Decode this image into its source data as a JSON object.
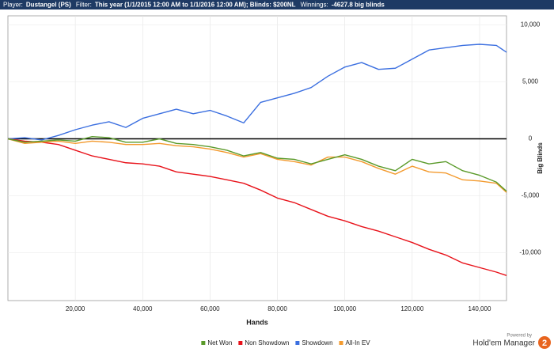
{
  "header": [
    {
      "label": "Player:",
      "value": "Dustangel (PS)"
    },
    {
      "label": "Filter:",
      "value": "This year (1/1/2015 12:00 AM to 1/1/2016 12:00 AM); Blinds: $200NL"
    },
    {
      "label": "Winnings:",
      "value": "-4627.8 big blinds"
    }
  ],
  "logo": {
    "caption": "Powered by",
    "name": "Hold'em Manager",
    "badge": "2"
  },
  "chart_data": {
    "type": "line",
    "x_label": "Hands",
    "y_label": "Big Blinds",
    "x": [
      0,
      5000,
      10000,
      15000,
      20000,
      25000,
      30000,
      35000,
      40000,
      45000,
      50000,
      55000,
      60000,
      65000,
      70000,
      75000,
      80000,
      85000,
      90000,
      95000,
      100000,
      105000,
      110000,
      115000,
      120000,
      125000,
      130000,
      135000,
      140000,
      145000,
      148000
    ],
    "series": [
      {
        "name": "Net Won",
        "color": "#5a9a2a",
        "values": [
          0,
          -300,
          -200,
          -100,
          -200,
          200,
          100,
          -300,
          -300,
          0,
          -400,
          -500,
          -700,
          -1000,
          -1500,
          -1200,
          -1700,
          -1800,
          -2200,
          -1800,
          -1400,
          -1800,
          -2400,
          -2800,
          -1800,
          -2200,
          -2000,
          -2800,
          -3200,
          -3800,
          -4600
        ]
      },
      {
        "name": "Non Showdown",
        "color": "#e8121a",
        "values": [
          0,
          -200,
          -300,
          -500,
          -1000,
          -1500,
          -1800,
          -2100,
          -2200,
          -2400,
          -2900,
          -3100,
          -3300,
          -3600,
          -3900,
          -4500,
          -5200,
          -5600,
          -6200,
          -6800,
          -7200,
          -7700,
          -8100,
          -8600,
          -9100,
          -9700,
          -10200,
          -10900,
          -11300,
          -11700,
          -12000
        ]
      },
      {
        "name": "Showdown",
        "color": "#3b6fe0",
        "values": [
          0,
          100,
          -100,
          300,
          800,
          1200,
          1500,
          1000,
          1800,
          2200,
          2600,
          2200,
          2500,
          2000,
          1400,
          3200,
          3600,
          4000,
          4500,
          5500,
          6300,
          6700,
          6100,
          6200,
          7000,
          7800,
          8000,
          8200,
          8300,
          8200,
          7600
        ]
      },
      {
        "name": "All-In EV",
        "color": "#f39a2e",
        "values": [
          0,
          -400,
          -300,
          -200,
          -400,
          -200,
          -300,
          -500,
          -500,
          -400,
          -600,
          -700,
          -900,
          -1200,
          -1600,
          -1300,
          -1800,
          -2000,
          -2300,
          -1600,
          -1600,
          -2000,
          -2600,
          -3100,
          -2400,
          -2900,
          -3000,
          -3600,
          -3700,
          -3900,
          -4700
        ]
      }
    ],
    "xlim": [
      0,
      148000
    ],
    "xticks": [
      {
        "value": 20000,
        "label": "20,000"
      },
      {
        "value": 40000,
        "label": "40,000"
      },
      {
        "value": 60000,
        "label": "60,000"
      },
      {
        "value": 80000,
        "label": "80,000"
      },
      {
        "value": 100000,
        "label": "100,000"
      },
      {
        "value": 120000,
        "label": "120,000"
      },
      {
        "value": 140000,
        "label": "140,000"
      }
    ],
    "ylim": [
      -14200,
      10800
    ],
    "yticks": [
      {
        "value": -10000,
        "label": "-10,000"
      },
      {
        "value": -5000,
        "label": "-5,000"
      },
      0,
      {
        "value": 5000,
        "label": "5,000"
      },
      {
        "value": 10000,
        "label": "10,000"
      }
    ],
    "grid": true,
    "legend": "bottom"
  }
}
